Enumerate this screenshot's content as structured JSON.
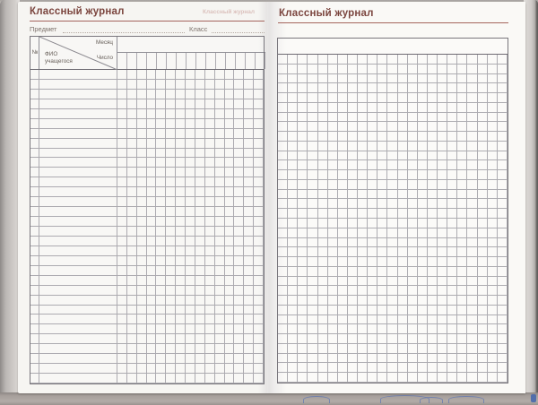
{
  "book": {
    "left_page": {
      "title": "Классный журнал",
      "showthrough_text": "Классный журнал",
      "subject_label": "Предмет",
      "class_label": "Класс",
      "table": {
        "number_label": "№",
        "name_label": "ФИО учащегося",
        "month_label": "Месяц",
        "day_label": "Число",
        "date_columns": 15,
        "rows": 32
      }
    },
    "right_page": {
      "title": "Классный журнал",
      "grid": {
        "columns": 23,
        "rows": 34,
        "header_row": ""
      }
    },
    "colors": {
      "title_text": "#7b453e",
      "title_rule": "#a5655d",
      "grid_line": "#8e8c94",
      "table_border": "#79767c",
      "page": "#f6f5f2",
      "cover_edge": "#b3aca8",
      "cover_blue_mark": "#4868b6"
    }
  }
}
